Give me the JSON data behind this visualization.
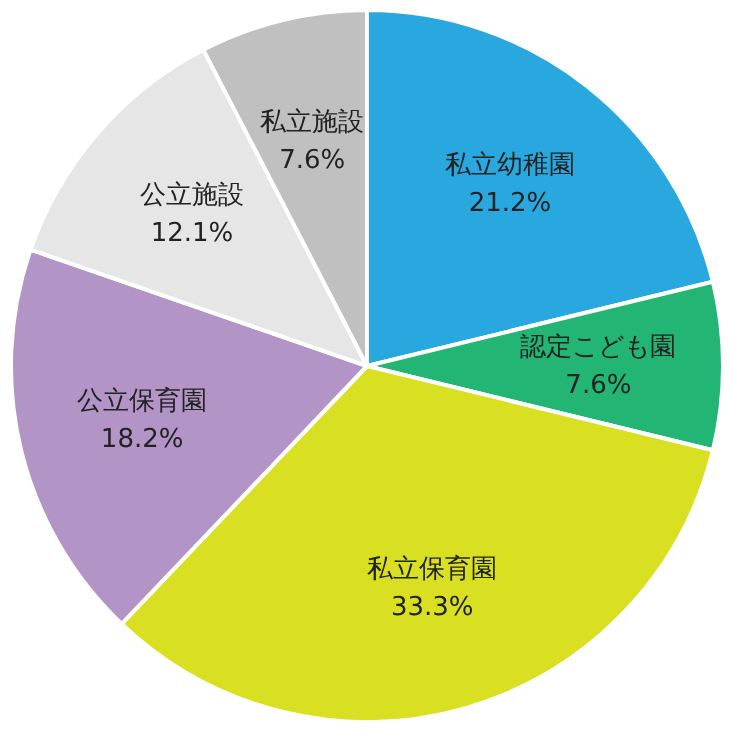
{
  "chart_data": {
    "type": "pie",
    "categories": [
      "私立幼稚園",
      "認定こども園",
      "私立保育園",
      "公立保育園",
      "公立施設",
      "私立施設"
    ],
    "values": [
      21.2,
      7.6,
      33.3,
      18.2,
      12.1,
      7.6
    ],
    "value_labels": [
      "21.2%",
      "7.6%",
      "33.3%",
      "18.2%",
      "12.1%",
      "7.6%"
    ],
    "colors": [
      "#29a8e0",
      "#22b573",
      "#d9e021",
      "#b294c7",
      "#e6e6e6",
      "#c0c0c0"
    ]
  }
}
